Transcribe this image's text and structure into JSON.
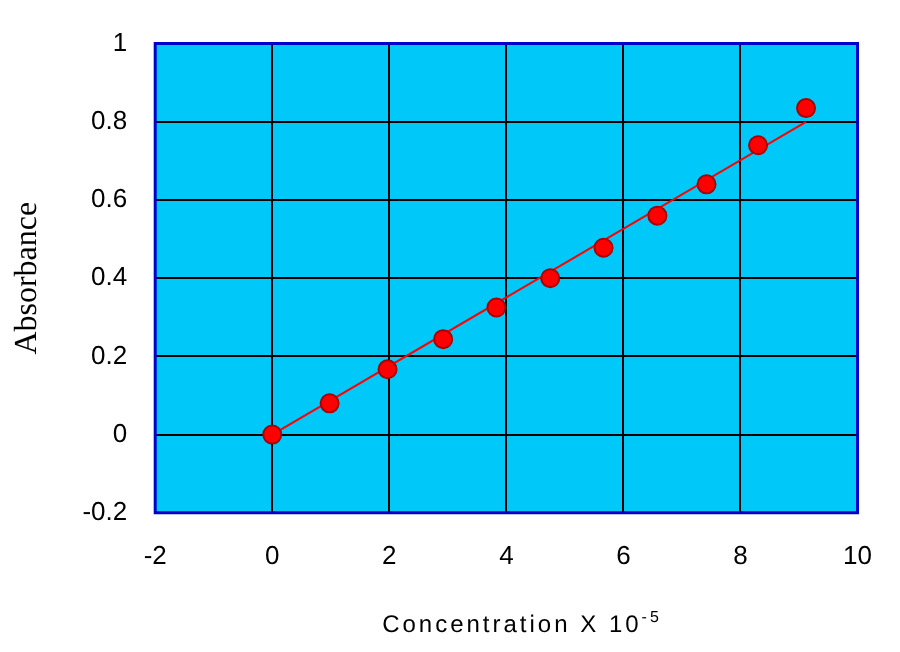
{
  "chart_data": {
    "type": "scatter",
    "xlabel": "Concentration X 10$^{-5}$",
    "ylabel": "Absorbance",
    "xlim": [
      -2,
      10
    ],
    "xticks": [
      -2,
      0,
      2,
      4,
      6,
      8,
      10
    ],
    "ylim": [
      -0.2,
      1
    ],
    "yticks": [
      -0.2,
      0,
      0.2,
      0.4,
      0.6,
      0.8,
      1
    ],
    "grid": true,
    "legend": false,
    "marker": "circle",
    "series": [
      {
        "type": "scatter",
        "color": "#ff0000",
        "x": [
          0,
          0.98,
          1.97,
          2.92,
          3.83,
          4.75,
          5.66,
          6.58,
          7.42,
          8.3,
          9.12
        ],
        "values": [
          0,
          0.08,
          0.167,
          0.244,
          0.325,
          0.4,
          0.478,
          0.56,
          0.64,
          0.74,
          0.835
        ]
      },
      {
        "type": "line",
        "color": "#ff0000",
        "x": [
          0,
          9.12
        ],
        "values": [
          0,
          0.8
        ],
        "marker": "none"
      }
    ]
  }
}
